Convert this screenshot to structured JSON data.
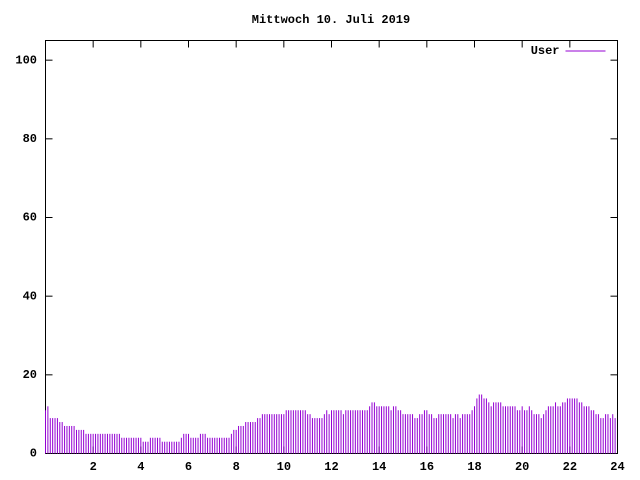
{
  "chart_data": {
    "type": "impulses",
    "title": "Mittwoch 10. Juli 2019",
    "series": [
      {
        "name": "User",
        "color": "#9400d3",
        "values": [
          11,
          12,
          9,
          9,
          9,
          9,
          8,
          8,
          7,
          7,
          7,
          7,
          7,
          6,
          6,
          6,
          6,
          5,
          5,
          5,
          5,
          5,
          5,
          5,
          5,
          5,
          5,
          5,
          5,
          5,
          5,
          5,
          4,
          4,
          4,
          4,
          4,
          4,
          4,
          4,
          4,
          3,
          3,
          3,
          4,
          4,
          4,
          4,
          4,
          3,
          3,
          3,
          3,
          3,
          3,
          3,
          3,
          4,
          5,
          5,
          5,
          4,
          4,
          4,
          4,
          5,
          5,
          5,
          4,
          4,
          4,
          4,
          4,
          4,
          4,
          4,
          4,
          4,
          5,
          6,
          6,
          7,
          7,
          7,
          8,
          8,
          8,
          8,
          8,
          9,
          9,
          10,
          10,
          10,
          10,
          10,
          10,
          10,
          10,
          10,
          10,
          11,
          11,
          11,
          11,
          11,
          11,
          11,
          11,
          11,
          10,
          10,
          9,
          9,
          9,
          9,
          9,
          10,
          11,
          10,
          11,
          11,
          11,
          11,
          11,
          10,
          11,
          11,
          11,
          11,
          11,
          11,
          11,
          11,
          11,
          11,
          12,
          13,
          13,
          12,
          12,
          12,
          12,
          12,
          12,
          11,
          12,
          12,
          11,
          11,
          10,
          10,
          10,
          10,
          10,
          9,
          9,
          10,
          10,
          11,
          11,
          10,
          10,
          9,
          9,
          10,
          10,
          10,
          10,
          10,
          10,
          9,
          10,
          10,
          9,
          10,
          10,
          10,
          10,
          11,
          12,
          14,
          15,
          15,
          14,
          14,
          13,
          12,
          13,
          13,
          13,
          13,
          12,
          12,
          12,
          12,
          12,
          12,
          11,
          11,
          12,
          11,
          11,
          12,
          11,
          10,
          10,
          10,
          9,
          10,
          11,
          12,
          12,
          12,
          13,
          12,
          12,
          13,
          13,
          14,
          14,
          14,
          14,
          14,
          13,
          13,
          12,
          12,
          12,
          11,
          11,
          10,
          10,
          9,
          9,
          10,
          10,
          9,
          10,
          9
        ]
      }
    ],
    "x": [
      0,
      0.1,
      0.2,
      0.3,
      0.4,
      0.5,
      0.6,
      0.7,
      0.8,
      0.9,
      1,
      1.1,
      1.2,
      1.3,
      1.4,
      1.5,
      1.6,
      1.7,
      1.8,
      1.9,
      2,
      2.1,
      2.2,
      2.3,
      2.4,
      2.5,
      2.6,
      2.7,
      2.8,
      2.9,
      3,
      3.1,
      3.2,
      3.3,
      3.4,
      3.5,
      3.6,
      3.7,
      3.8,
      3.9,
      4,
      4.1,
      4.2,
      4.3,
      4.4,
      4.5,
      4.6,
      4.7,
      4.8,
      4.9,
      5,
      5.1,
      5.2,
      5.3,
      5.4,
      5.5,
      5.6,
      5.7,
      5.8,
      5.9,
      6,
      6.1,
      6.2,
      6.3,
      6.4,
      6.5,
      6.6,
      6.7,
      6.8,
      6.9,
      7,
      7.1,
      7.2,
      7.3,
      7.4,
      7.5,
      7.6,
      7.7,
      7.8,
      7.9,
      8,
      8.1,
      8.2,
      8.3,
      8.4,
      8.5,
      8.6,
      8.7,
      8.8,
      8.9,
      9,
      9.1,
      9.2,
      9.3,
      9.4,
      9.5,
      9.6,
      9.7,
      9.8,
      9.9,
      10,
      10.1,
      10.2,
      10.3,
      10.4,
      10.5,
      10.6,
      10.7,
      10.8,
      10.9,
      11,
      11.1,
      11.2,
      11.3,
      11.4,
      11.5,
      11.6,
      11.7,
      11.8,
      11.9,
      12,
      12.1,
      12.2,
      12.3,
      12.4,
      12.5,
      12.6,
      12.7,
      12.8,
      12.9,
      13,
      13.1,
      13.2,
      13.3,
      13.4,
      13.5,
      13.6,
      13.7,
      13.8,
      13.9,
      14,
      14.1,
      14.2,
      14.3,
      14.4,
      14.5,
      14.6,
      14.7,
      14.8,
      14.9,
      15,
      15.1,
      15.2,
      15.3,
      15.4,
      15.5,
      15.6,
      15.7,
      15.8,
      15.9,
      16,
      16.1,
      16.2,
      16.3,
      16.4,
      16.5,
      16.6,
      16.7,
      16.8,
      16.9,
      17,
      17.1,
      17.2,
      17.3,
      17.4,
      17.5,
      17.6,
      17.7,
      17.8,
      17.9,
      18,
      18.1,
      18.2,
      18.3,
      18.4,
      18.5,
      18.6,
      18.7,
      18.8,
      18.9,
      19,
      19.1,
      19.2,
      19.3,
      19.4,
      19.5,
      19.6,
      19.7,
      19.8,
      19.9,
      20,
      20.1,
      20.2,
      20.3,
      20.4,
      20.5,
      20.6,
      20.7,
      20.8,
      20.9,
      21,
      21.1,
      21.2,
      21.3,
      21.4,
      21.5,
      21.6,
      21.7,
      21.8,
      21.9,
      22,
      22.1,
      22.2,
      22.3,
      22.4,
      22.5,
      22.6,
      22.7,
      22.8,
      22.9,
      23,
      23.1,
      23.2,
      23.3,
      23.4,
      23.5,
      23.6,
      23.7,
      23.8,
      23.9
    ],
    "xlim": [
      0,
      24
    ],
    "xticks": [
      2,
      4,
      6,
      8,
      10,
      12,
      14,
      16,
      18,
      20,
      22,
      24
    ],
    "ylim": [
      0,
      105
    ],
    "yticks": [
      0,
      20,
      40,
      60,
      80,
      100
    ],
    "legend": "top-right"
  }
}
